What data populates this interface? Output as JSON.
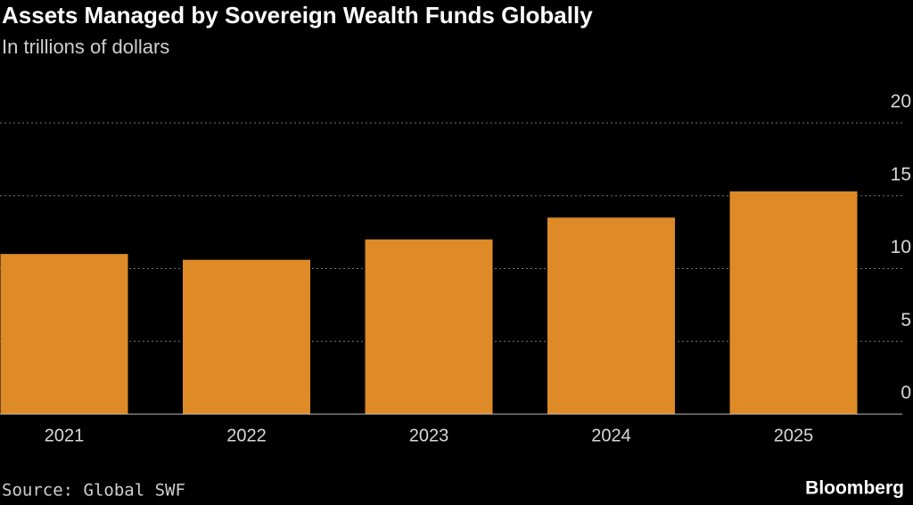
{
  "chart_data": {
    "type": "bar",
    "title": "Assets Managed by Sovereign Wealth Funds Globally",
    "subtitle": "In trillions of dollars",
    "categories": [
      "2021",
      "2022",
      "2023",
      "2024",
      "2025"
    ],
    "values": [
      11.0,
      10.6,
      12.0,
      13.5,
      15.3
    ],
    "color": "#dd8a27",
    "ylim": [
      0,
      20
    ],
    "yticks": [
      0,
      5,
      10,
      15,
      20
    ],
    "grid": true,
    "source": "Source: Global SWF",
    "brand": "Bloomberg"
  }
}
